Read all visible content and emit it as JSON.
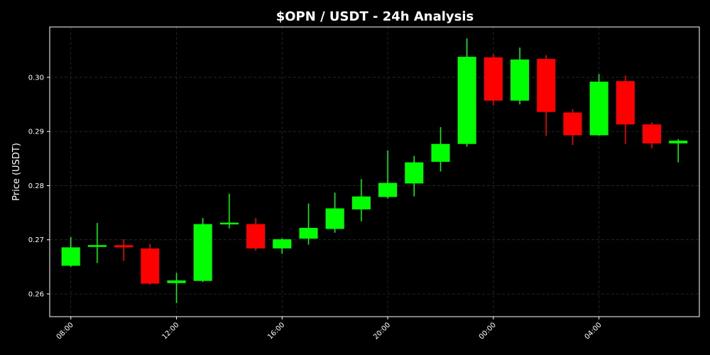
{
  "chart_data": {
    "type": "candlestick",
    "title": "$OPN / USDT - 24h Analysis",
    "xlabel": "",
    "ylabel": "Price (USDT)",
    "colors": {
      "up": "#00ff00",
      "down": "#ff0000",
      "background": "#000000",
      "text": "#ffffff"
    },
    "grid": true,
    "ylim": [
      0.2558,
      0.3093
    ],
    "xlim": [
      -0.8,
      23.8
    ],
    "y_ticks": [
      0.26,
      0.27,
      0.28,
      0.29,
      0.3
    ],
    "y_tick_labels": [
      "0.26",
      "0.27",
      "0.28",
      "0.29",
      "0.30"
    ],
    "x_ticks": [
      0,
      4,
      8,
      12,
      16,
      20
    ],
    "x_tick_labels": [
      "08:00",
      "12:00",
      "16:00",
      "20:00",
      "00:00",
      "04:00"
    ],
    "candles": [
      {
        "x": 0,
        "open": 0.2652,
        "high": 0.2705,
        "low": 0.265,
        "close": 0.2686
      },
      {
        "x": 1,
        "open": 0.2687,
        "high": 0.2731,
        "low": 0.2657,
        "close": 0.269
      },
      {
        "x": 2,
        "open": 0.269,
        "high": 0.2701,
        "low": 0.2661,
        "close": 0.2686
      },
      {
        "x": 3,
        "open": 0.2684,
        "high": 0.2692,
        "low": 0.2617,
        "close": 0.2619
      },
      {
        "x": 4,
        "open": 0.262,
        "high": 0.2639,
        "low": 0.2583,
        "close": 0.2625
      },
      {
        "x": 5,
        "open": 0.2624,
        "high": 0.274,
        "low": 0.2622,
        "close": 0.2729
      },
      {
        "x": 6,
        "open": 0.2729,
        "high": 0.2785,
        "low": 0.2721,
        "close": 0.2731
      },
      {
        "x": 7,
        "open": 0.2729,
        "high": 0.274,
        "low": 0.268,
        "close": 0.2684
      },
      {
        "x": 8,
        "open": 0.2684,
        "high": 0.2703,
        "low": 0.2674,
        "close": 0.2701
      },
      {
        "x": 9,
        "open": 0.2702,
        "high": 0.2767,
        "low": 0.2691,
        "close": 0.2722
      },
      {
        "x": 10,
        "open": 0.272,
        "high": 0.2787,
        "low": 0.2713,
        "close": 0.2758
      },
      {
        "x": 11,
        "open": 0.2756,
        "high": 0.2812,
        "low": 0.2734,
        "close": 0.278
      },
      {
        "x": 12,
        "open": 0.2779,
        "high": 0.2865,
        "low": 0.2776,
        "close": 0.2805
      },
      {
        "x": 13,
        "open": 0.2804,
        "high": 0.2855,
        "low": 0.278,
        "close": 0.2843
      },
      {
        "x": 14,
        "open": 0.2844,
        "high": 0.2908,
        "low": 0.2826,
        "close": 0.2877
      },
      {
        "x": 15,
        "open": 0.2877,
        "high": 0.3072,
        "low": 0.2872,
        "close": 0.3038
      },
      {
        "x": 16,
        "open": 0.3037,
        "high": 0.3043,
        "low": 0.2948,
        "close": 0.2957
      },
      {
        "x": 17,
        "open": 0.2957,
        "high": 0.3055,
        "low": 0.295,
        "close": 0.3033
      },
      {
        "x": 18,
        "open": 0.3034,
        "high": 0.3041,
        "low": 0.2892,
        "close": 0.2936
      },
      {
        "x": 19,
        "open": 0.2935,
        "high": 0.2941,
        "low": 0.2875,
        "close": 0.2893
      },
      {
        "x": 20,
        "open": 0.2893,
        "high": 0.3006,
        "low": 0.2892,
        "close": 0.2992
      },
      {
        "x": 21,
        "open": 0.2993,
        "high": 0.3003,
        "low": 0.2877,
        "close": 0.2913
      },
      {
        "x": 22,
        "open": 0.2913,
        "high": 0.2917,
        "low": 0.2869,
        "close": 0.2878
      },
      {
        "x": 23,
        "open": 0.2878,
        "high": 0.2886,
        "low": 0.2843,
        "close": 0.2883
      }
    ]
  }
}
